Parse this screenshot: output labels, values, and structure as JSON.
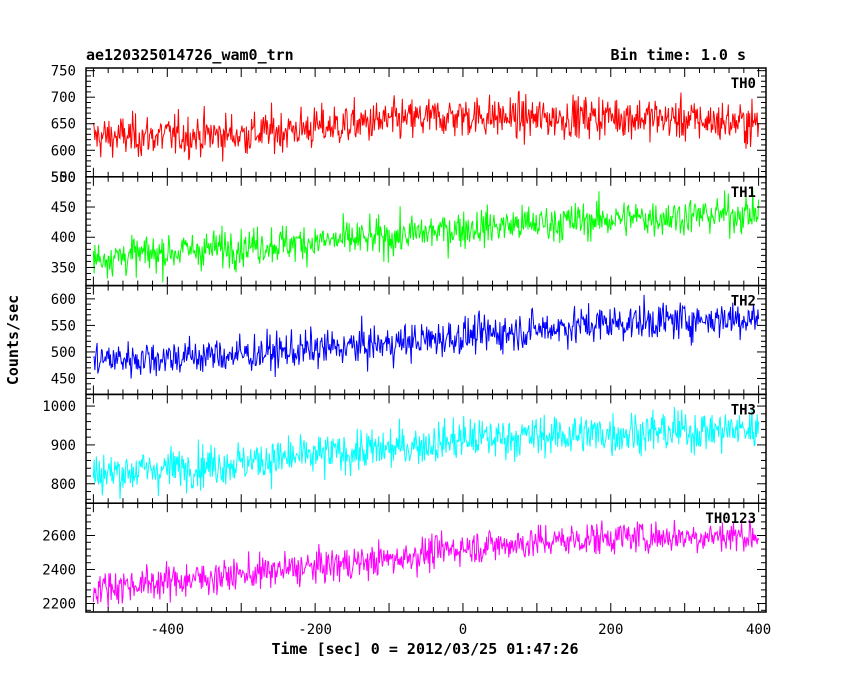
{
  "header": {
    "left_title": "ae120325014726_wam0_trn",
    "right_title": "Bin time: 1.0 s"
  },
  "chart_data": {
    "type": "line",
    "xlabel": "Time [sec] 0 = 2012/03/25 01:47:26",
    "ylabel": "Counts/sec",
    "xlim": [
      -510,
      410
    ],
    "x_ticks": [
      -400,
      -200,
      0,
      200,
      400
    ],
    "x_range": [
      -500,
      400
    ],
    "x_step": 1,
    "grid": false,
    "panels": [
      {
        "name": "TH0",
        "color": "#ff0000",
        "ylim": [
          550,
          755
        ],
        "y_ticks": [
          550,
          600,
          650,
          700,
          750
        ],
        "trend": [
          [
            -500,
            625
          ],
          [
            -300,
            630
          ],
          [
            -100,
            655
          ],
          [
            0,
            665
          ],
          [
            100,
            660
          ],
          [
            200,
            665
          ],
          [
            400,
            650
          ]
        ],
        "noise": 28
      },
      {
        "name": "TH1",
        "color": "#00ff00",
        "ylim": [
          320,
          500
        ],
        "y_ticks": [
          350,
          400,
          450,
          500
        ],
        "trend": [
          [
            -500,
            365
          ],
          [
            -300,
            385
          ],
          [
            -100,
            400
          ],
          [
            0,
            415
          ],
          [
            200,
            430
          ],
          [
            400,
            440
          ]
        ],
        "noise": 22
      },
      {
        "name": "TH2",
        "color": "#0000ff",
        "ylim": [
          420,
          625
        ],
        "y_ticks": [
          450,
          500,
          550,
          600
        ],
        "trend": [
          [
            -500,
            485
          ],
          [
            -300,
            495
          ],
          [
            -100,
            515
          ],
          [
            0,
            530
          ],
          [
            200,
            555
          ],
          [
            400,
            565
          ]
        ],
        "noise": 25
      },
      {
        "name": "TH3",
        "color": "#00ffff",
        "ylim": [
          750,
          1030
        ],
        "y_ticks": [
          800,
          900,
          1000
        ],
        "trend": [
          [
            -500,
            825
          ],
          [
            -300,
            855
          ],
          [
            -100,
            890
          ],
          [
            0,
            915
          ],
          [
            200,
            930
          ],
          [
            400,
            940
          ]
        ],
        "noise": 38
      },
      {
        "name": "TH0123",
        "color": "#ff00ff",
        "ylim": [
          2150,
          2790
        ],
        "y_ticks": [
          2200,
          2400,
          2600
        ],
        "trend": [
          [
            -500,
            2290
          ],
          [
            -300,
            2370
          ],
          [
            -100,
            2460
          ],
          [
            0,
            2530
          ],
          [
            200,
            2590
          ],
          [
            400,
            2600
          ]
        ],
        "noise": 70
      }
    ]
  }
}
